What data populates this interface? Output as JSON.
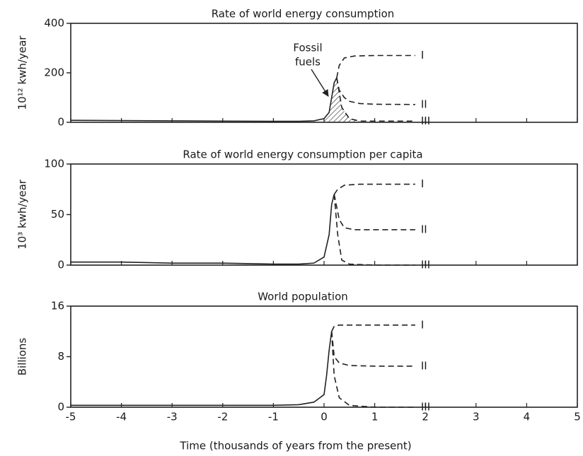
{
  "chart_data": [
    {
      "type": "line",
      "title": "Rate of world energy consumption",
      "ylabel": "10¹² kwh/year",
      "xlim": [
        -5,
        5
      ],
      "xticks": [
        -5,
        -4,
        -3,
        -2,
        -1,
        0,
        1,
        2,
        3,
        4,
        5
      ],
      "xtick_labels": false,
      "ylim": [
        0,
        400
      ],
      "yticks": [
        0,
        200,
        400
      ],
      "annotation": [
        "Fossil",
        "fuels"
      ],
      "hatch": true,
      "series": [
        {
          "style": "solid",
          "color": "#222",
          "x": [
            -5,
            -4,
            -3,
            -2,
            -1,
            -0.5,
            -0.2,
            0,
            0.1,
            0.15,
            0.2,
            0.25
          ],
          "values": [
            8,
            7,
            6,
            5,
            4,
            4,
            6,
            15,
            40,
            100,
            160,
            180
          ]
        },
        {
          "name": "I",
          "style": "dashed",
          "color": "#222",
          "x": [
            0.25,
            0.3,
            0.4,
            0.6,
            1,
            1.8
          ],
          "values": [
            180,
            230,
            260,
            268,
            270,
            270
          ]
        },
        {
          "name": "II",
          "style": "dashed",
          "color": "#222",
          "x": [
            0.25,
            0.3,
            0.4,
            0.5,
            0.7,
            1,
            1.8
          ],
          "values": [
            180,
            130,
            100,
            85,
            76,
            73,
            72
          ]
        },
        {
          "name": "III",
          "style": "dashed",
          "color": "#222",
          "x": [
            0.25,
            0.35,
            0.5,
            0.7,
            1,
            1.8
          ],
          "values": [
            180,
            60,
            15,
            5,
            5,
            5
          ]
        }
      ]
    },
    {
      "type": "line",
      "title": "Rate of world energy consumption per capita",
      "ylabel": "10³ kwh/year",
      "xlim": [
        -5,
        5
      ],
      "xticks": [
        -5,
        -4,
        -3,
        -2,
        -1,
        0,
        1,
        2,
        3,
        4,
        5
      ],
      "xtick_labels": false,
      "ylim": [
        0,
        100
      ],
      "yticks": [
        0,
        50,
        100
      ],
      "series": [
        {
          "style": "solid",
          "color": "#222",
          "x": [
            -5,
            -4,
            -3,
            -2,
            -1,
            -0.5,
            -0.2,
            0,
            0.1,
            0.15,
            0.2
          ],
          "values": [
            3,
            3,
            2,
            2,
            1,
            1,
            2,
            8,
            30,
            60,
            70
          ]
        },
        {
          "name": "I",
          "style": "dashed",
          "color": "#222",
          "x": [
            0.2,
            0.27,
            0.4,
            0.7,
            1.8
          ],
          "values": [
            70,
            75,
            79,
            80,
            80
          ]
        },
        {
          "name": "II",
          "style": "dashed",
          "color": "#222",
          "x": [
            0.2,
            0.3,
            0.4,
            0.6,
            1,
            1.8
          ],
          "values": [
            70,
            45,
            37,
            35,
            35,
            35
          ]
        },
        {
          "name": "III",
          "style": "dashed",
          "color": "#222",
          "x": [
            0.2,
            0.27,
            0.35,
            0.5,
            1,
            1.8
          ],
          "values": [
            70,
            30,
            5,
            1,
            0,
            0
          ]
        }
      ]
    },
    {
      "type": "line",
      "title": "World population",
      "ylabel": "Billions",
      "xlabel": "Time (thousands of years from the present)",
      "xlim": [
        -5,
        5
      ],
      "xticks": [
        -5,
        -4,
        -3,
        -2,
        -1,
        0,
        1,
        2,
        3,
        4,
        5
      ],
      "xtick_labels": true,
      "ylim": [
        0,
        16
      ],
      "yticks": [
        0,
        8,
        16
      ],
      "series": [
        {
          "style": "solid",
          "color": "#222",
          "x": [
            -5,
            -4,
            -3,
            -2,
            -1,
            -0.5,
            -0.2,
            0,
            0.05,
            0.1,
            0.15
          ],
          "values": [
            0.3,
            0.3,
            0.3,
            0.3,
            0.3,
            0.4,
            0.8,
            2,
            5,
            9,
            12
          ]
        },
        {
          "name": "I",
          "style": "dashed",
          "color": "#222",
          "x": [
            0.15,
            0.2,
            0.3,
            0.5,
            1,
            1.8
          ],
          "values": [
            12,
            12.8,
            13,
            13,
            13,
            13
          ]
        },
        {
          "name": "II",
          "style": "dashed",
          "color": "#222",
          "x": [
            0.15,
            0.2,
            0.3,
            0.5,
            1,
            1.8
          ],
          "values": [
            12,
            8,
            7,
            6.6,
            6.5,
            6.5
          ]
        },
        {
          "name": "III",
          "style": "dashed",
          "color": "#222",
          "x": [
            0.15,
            0.2,
            0.3,
            0.5,
            1,
            1.8
          ],
          "values": [
            12,
            5,
            1.5,
            0.3,
            0,
            0
          ]
        }
      ]
    }
  ]
}
